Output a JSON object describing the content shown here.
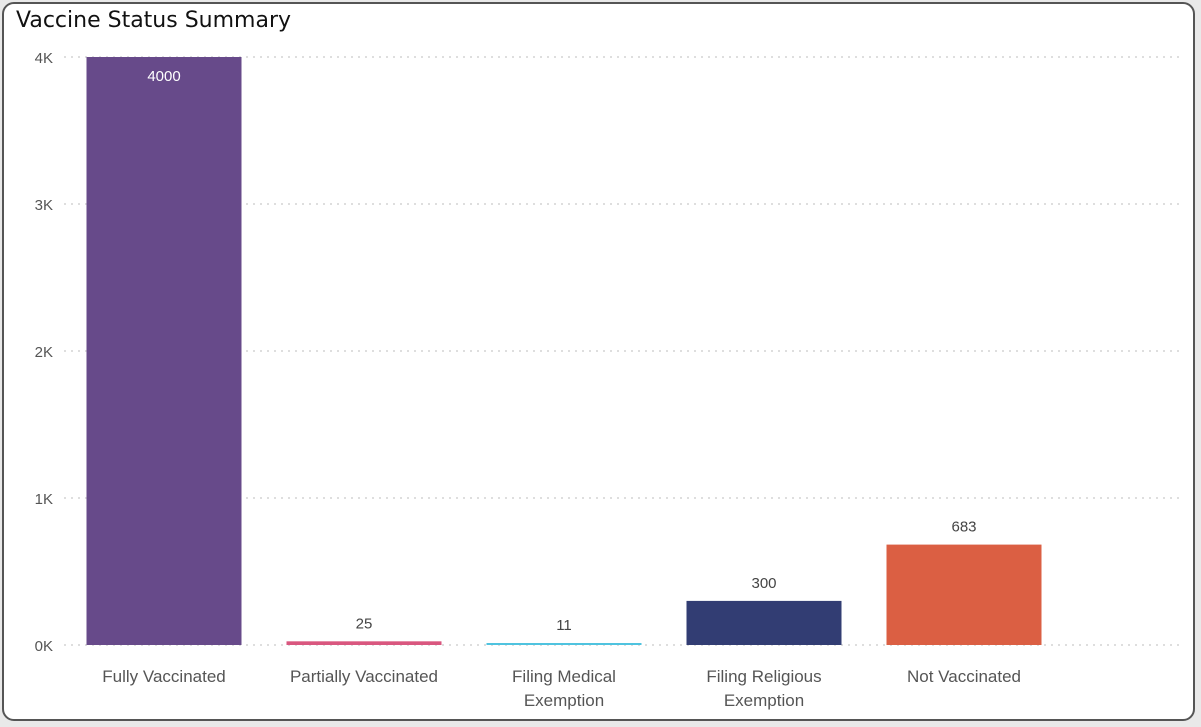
{
  "chart_data": {
    "type": "bar",
    "title": "Vaccine Status Summary",
    "categories": [
      [
        "Fully Vaccinated"
      ],
      [
        "Partially Vaccinated"
      ],
      [
        "Filing Medical",
        "Exemption"
      ],
      [
        "Filing Religious",
        "Exemption"
      ],
      [
        "Not Vaccinated"
      ]
    ],
    "values": [
      4000,
      25,
      11,
      300,
      683
    ],
    "data_labels": [
      "4000",
      "25",
      "11",
      "300",
      "683"
    ],
    "colors": [
      "#674a8a",
      "#d9577f",
      "#4fc3df",
      "#323d73",
      "#db5f43"
    ],
    "label_colors": [
      "#ffffff",
      "#444444",
      "#444444",
      "#444444",
      "#444444"
    ],
    "y_ticks": [
      {
        "value": 0,
        "label": "0K"
      },
      {
        "value": 1000,
        "label": "1K"
      },
      {
        "value": 2000,
        "label": "2K"
      },
      {
        "value": 3000,
        "label": "3K"
      },
      {
        "value": 4000,
        "label": "4K"
      }
    ],
    "ylim": [
      0,
      4000
    ],
    "grid": true,
    "legend": "none",
    "xlabel": "",
    "ylabel": ""
  }
}
